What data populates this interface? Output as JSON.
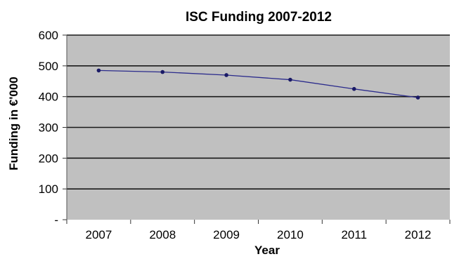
{
  "chart_data": {
    "type": "line",
    "title": "ISC Funding 2007-2012",
    "xlabel": "Year",
    "ylabel": "Funding in €'000",
    "categories": [
      "2007",
      "2008",
      "2009",
      "2010",
      "2011",
      "2012"
    ],
    "series": [
      {
        "values": [
          485,
          480,
          470,
          455,
          425,
          397
        ]
      }
    ],
    "ylim": [
      0,
      600
    ],
    "yticks": [
      "-",
      "100",
      "200",
      "300",
      "400",
      "500",
      "600"
    ],
    "grid": true,
    "legend": "none",
    "colors": {
      "plot_background": "#c0c0c0",
      "gridline": "#1a1a1a",
      "line": "#2b2b8c",
      "marker": "#1a1a66"
    }
  }
}
